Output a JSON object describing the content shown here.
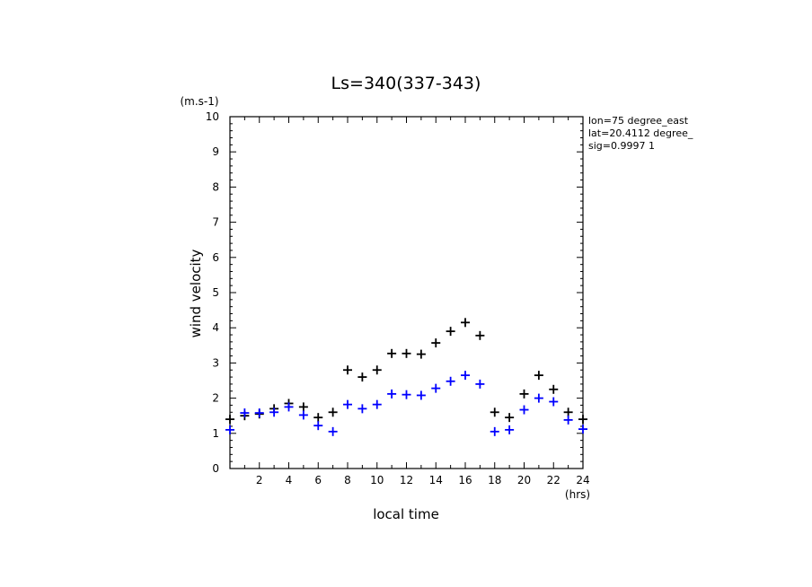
{
  "chart_data": {
    "type": "scatter",
    "title": "Ls=340(337-343)",
    "xlabel": "local time",
    "ylabel": "wind velocity",
    "x_unit": "(hrs)",
    "y_unit": "(m.s-1)",
    "xlim": [
      0,
      24
    ],
    "ylim": [
      0,
      10
    ],
    "x_ticks": [
      2,
      4,
      6,
      8,
      10,
      12,
      14,
      16,
      18,
      20,
      22,
      24
    ],
    "y_ticks": [
      0,
      1,
      2,
      3,
      4,
      5,
      6,
      7,
      8,
      9,
      10
    ],
    "annotations": [
      "lon=75 degree_east",
      "lat=20.4112 degree_",
      "sig=0.9997 1"
    ],
    "grid": false,
    "marker": "+",
    "series": [
      {
        "color": "#000000",
        "x": [
          0,
          1,
          2,
          3,
          4,
          5,
          6,
          7,
          8,
          9,
          10,
          11,
          12,
          13,
          14,
          15,
          16,
          17,
          18,
          19,
          20,
          21,
          22,
          23,
          24
        ],
        "y": [
          1.4,
          1.5,
          1.55,
          1.7,
          1.85,
          1.75,
          1.45,
          1.6,
          2.8,
          2.6,
          2.8,
          3.27,
          3.27,
          3.25,
          3.57,
          3.9,
          4.15,
          3.78,
          1.6,
          1.45,
          2.12,
          2.65,
          2.25,
          1.6,
          1.4
        ]
      },
      {
        "color": "#0000ff",
        "x": [
          0,
          1,
          2,
          3,
          4,
          5,
          6,
          7,
          8,
          9,
          10,
          11,
          12,
          13,
          14,
          15,
          16,
          17,
          18,
          19,
          20,
          21,
          22,
          23,
          24
        ],
        "y": [
          1.1,
          1.58,
          1.58,
          1.6,
          1.75,
          1.52,
          1.22,
          1.05,
          1.82,
          1.7,
          1.82,
          2.12,
          2.1,
          2.08,
          2.28,
          2.48,
          2.65,
          2.4,
          1.05,
          1.1,
          1.67,
          2.0,
          1.9,
          1.38,
          1.12
        ]
      }
    ]
  }
}
